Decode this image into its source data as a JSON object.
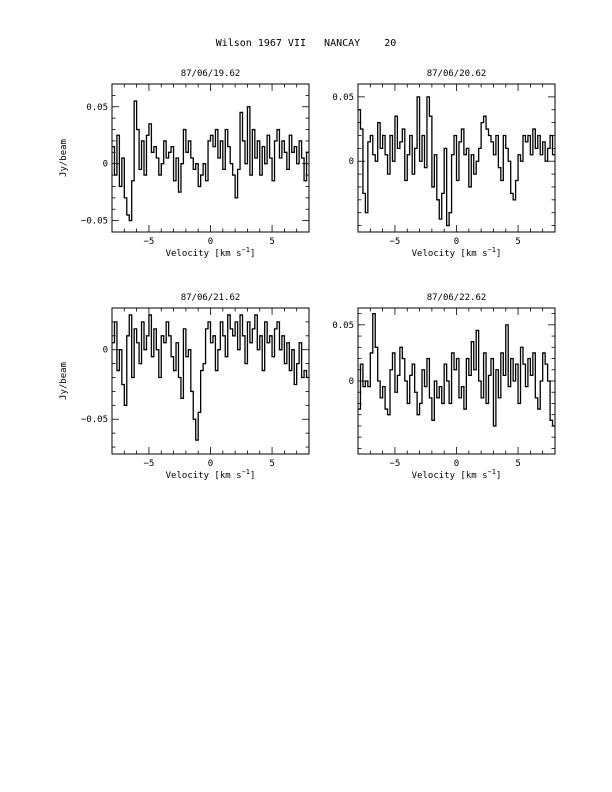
{
  "page": {
    "title": "Wilson 1967 VII   NANCAY    20"
  },
  "chart_data": [
    {
      "type": "line",
      "title": "87/06/19.62",
      "xlabel": "Velocity [km s^-1]",
      "ylabel": "Jy/beam",
      "xlim": [
        -8,
        8
      ],
      "ylim": [
        -0.06,
        0.07
      ],
      "xticks": [
        -5,
        0,
        5
      ],
      "yticks": [
        -0.05,
        0,
        0.05
      ],
      "ytick_labels": [
        "-0.05",
        "0",
        "0.05"
      ],
      "x": [
        -7.9,
        -7.7,
        -7.5,
        -7.3,
        -7.1,
        -6.9,
        -6.7,
        -6.5,
        -6.3,
        -6.1,
        -5.9,
        -5.7,
        -5.5,
        -5.3,
        -5.1,
        -4.9,
        -4.7,
        -4.5,
        -4.3,
        -4.1,
        -3.9,
        -3.7,
        -3.5,
        -3.3,
        -3.1,
        -2.9,
        -2.7,
        -2.5,
        -2.3,
        -2.1,
        -1.9,
        -1.7,
        -1.5,
        -1.3,
        -1.1,
        -0.9,
        -0.7,
        -0.5,
        -0.3,
        -0.1,
        0.1,
        0.3,
        0.5,
        0.7,
        0.9,
        1.1,
        1.3,
        1.5,
        1.7,
        1.9,
        2.1,
        2.3,
        2.5,
        2.7,
        2.9,
        3.1,
        3.3,
        3.5,
        3.7,
        3.9,
        4.1,
        4.3,
        4.5,
        4.7,
        4.9,
        5.1,
        5.3,
        5.5,
        5.7,
        5.9,
        6.1,
        6.3,
        6.5,
        6.7,
        6.9,
        7.1,
        7.3,
        7.5,
        7.7,
        7.9
      ],
      "y": [
        0.015,
        -0.01,
        0.025,
        -0.02,
        0.005,
        -0.03,
        -0.045,
        -0.05,
        -0.015,
        0.055,
        0.03,
        -0.005,
        0.02,
        -0.01,
        0.025,
        0.035,
        0.01,
        0.015,
        0.005,
        -0.01,
        0.0,
        0.02,
        0.005,
        0.01,
        0.015,
        -0.015,
        0.005,
        -0.025,
        0.0,
        0.03,
        0.01,
        0.02,
        0.005,
        -0.005,
        0.0,
        -0.02,
        -0.01,
        0.0,
        -0.015,
        0.02,
        0.025,
        0.015,
        0.03,
        0.005,
        0.02,
        -0.005,
        0.03,
        0.015,
        0.0,
        -0.01,
        -0.03,
        -0.005,
        0.045,
        0.02,
        0.0,
        0.05,
        -0.01,
        0.03,
        0.005,
        0.02,
        -0.01,
        0.015,
        0.0,
        0.025,
        0.005,
        -0.015,
        0.02,
        0.03,
        0.005,
        0.02,
        0.01,
        -0.005,
        0.025,
        0.01,
        0.015,
        0.0,
        0.02,
        0.005,
        -0.015,
        0.01
      ]
    },
    {
      "type": "line",
      "title": "87/06/20.62",
      "xlabel": "Velocity [km s^-1]",
      "ylabel": "",
      "xlim": [
        -8,
        8
      ],
      "ylim": [
        -0.055,
        0.06
      ],
      "xticks": [
        -5,
        0,
        5
      ],
      "yticks": [
        0,
        0.05
      ],
      "ytick_labels": [
        "0",
        "0.05"
      ],
      "x": [
        -7.9,
        -7.7,
        -7.5,
        -7.3,
        -7.1,
        -6.9,
        -6.7,
        -6.5,
        -6.3,
        -6.1,
        -5.9,
        -5.7,
        -5.5,
        -5.3,
        -5.1,
        -4.9,
        -4.7,
        -4.5,
        -4.3,
        -4.1,
        -3.9,
        -3.7,
        -3.5,
        -3.3,
        -3.1,
        -2.9,
        -2.7,
        -2.5,
        -2.3,
        -2.1,
        -1.9,
        -1.7,
        -1.5,
        -1.3,
        -1.1,
        -0.9,
        -0.7,
        -0.5,
        -0.3,
        -0.1,
        0.1,
        0.3,
        0.5,
        0.7,
        0.9,
        1.1,
        1.3,
        1.5,
        1.7,
        1.9,
        2.1,
        2.3,
        2.5,
        2.7,
        2.9,
        3.1,
        3.3,
        3.5,
        3.7,
        3.9,
        4.1,
        4.3,
        4.5,
        4.7,
        4.9,
        5.1,
        5.3,
        5.5,
        5.7,
        5.9,
        6.1,
        6.3,
        6.5,
        6.7,
        6.9,
        7.1,
        7.3,
        7.5,
        7.7,
        7.9
      ],
      "y": [
        0.04,
        0.025,
        -0.025,
        -0.04,
        0.015,
        0.02,
        0.005,
        0.0,
        0.03,
        0.01,
        0.02,
        0.005,
        -0.01,
        0.02,
        0.0,
        0.035,
        0.01,
        0.015,
        0.025,
        -0.015,
        0.005,
        0.02,
        -0.01,
        0.01,
        0.05,
        0.0,
        0.02,
        -0.005,
        0.05,
        0.035,
        -0.02,
        0.005,
        -0.03,
        -0.045,
        -0.025,
        0.01,
        -0.05,
        -0.04,
        0.005,
        0.02,
        -0.015,
        0.015,
        0.025,
        0.005,
        0.01,
        -0.02,
        0.005,
        -0.01,
        0.0,
        0.01,
        0.03,
        0.035,
        0.025,
        0.02,
        0.015,
        0.005,
        0.02,
        -0.005,
        -0.015,
        0.02,
        0.01,
        0.0,
        -0.025,
        -0.03,
        -0.015,
        0.005,
        0.0,
        0.02,
        0.015,
        0.02,
        0.005,
        0.025,
        0.01,
        0.02,
        0.005,
        0.015,
        0.0,
        0.01,
        0.02,
        0.005
      ]
    },
    {
      "type": "line",
      "title": "87/06/21.62",
      "xlabel": "Velocity [km s^-1]",
      "ylabel": "Jy/beam",
      "xlim": [
        -8,
        8
      ],
      "ylim": [
        -0.075,
        0.03
      ],
      "xticks": [
        -5,
        0,
        5
      ],
      "yticks": [
        -0.05,
        0
      ],
      "ytick_labels": [
        "-0.05",
        "0"
      ],
      "x": [
        -7.9,
        -7.7,
        -7.5,
        -7.3,
        -7.1,
        -6.9,
        -6.7,
        -6.5,
        -6.3,
        -6.1,
        -5.9,
        -5.7,
        -5.5,
        -5.3,
        -5.1,
        -4.9,
        -4.7,
        -4.5,
        -4.3,
        -4.1,
        -3.9,
        -3.7,
        -3.5,
        -3.3,
        -3.1,
        -2.9,
        -2.7,
        -2.5,
        -2.3,
        -2.1,
        -1.9,
        -1.7,
        -1.5,
        -1.3,
        -1.1,
        -0.9,
        -0.7,
        -0.5,
        -0.3,
        -0.1,
        0.1,
        0.3,
        0.5,
        0.7,
        0.9,
        1.1,
        1.3,
        1.5,
        1.7,
        1.9,
        2.1,
        2.3,
        2.5,
        2.7,
        2.9,
        3.1,
        3.3,
        3.5,
        3.7,
        3.9,
        4.1,
        4.3,
        4.5,
        4.7,
        4.9,
        5.1,
        5.3,
        5.5,
        5.7,
        5.9,
        6.1,
        6.3,
        6.5,
        6.7,
        6.9,
        7.1,
        7.3,
        7.5,
        7.7,
        7.9
      ],
      "y": [
        0.005,
        0.02,
        -0.015,
        0.0,
        -0.025,
        -0.04,
        0.01,
        0.025,
        -0.02,
        0.015,
        0.005,
        -0.01,
        0.02,
        0.0,
        0.01,
        0.025,
        -0.005,
        0.015,
        0.0,
        -0.02,
        0.01,
        0.005,
        0.02,
        0.01,
        -0.005,
        -0.015,
        0.005,
        -0.02,
        -0.035,
        0.015,
        -0.005,
        0.0,
        -0.03,
        -0.05,
        -0.065,
        -0.045,
        -0.015,
        -0.01,
        0.015,
        0.02,
        0.005,
        0.01,
        -0.015,
        0.0,
        0.02,
        0.01,
        -0.005,
        0.025,
        0.015,
        0.01,
        0.02,
        0.0,
        0.025,
        0.01,
        -0.01,
        0.02,
        0.005,
        0.015,
        0.025,
        0.0,
        0.01,
        -0.015,
        0.02,
        0.005,
        0.01,
        -0.005,
        0.015,
        0.02,
        0.0,
        0.01,
        -0.01,
        0.005,
        -0.015,
        0.0,
        -0.025,
        -0.01,
        0.005,
        -0.02,
        -0.015,
        -0.02
      ]
    },
    {
      "type": "line",
      "title": "87/06/22.62",
      "xlabel": "Velocity [km s^-1]",
      "ylabel": "",
      "xlim": [
        -8,
        8
      ],
      "ylim": [
        -0.065,
        0.065
      ],
      "xticks": [
        -5,
        0,
        5
      ],
      "yticks": [
        0,
        0.05
      ],
      "ytick_labels": [
        "0",
        "0.05"
      ],
      "x": [
        -7.9,
        -7.7,
        -7.5,
        -7.3,
        -7.1,
        -6.9,
        -6.7,
        -6.5,
        -6.3,
        -6.1,
        -5.9,
        -5.7,
        -5.5,
        -5.3,
        -5.1,
        -4.9,
        -4.7,
        -4.5,
        -4.3,
        -4.1,
        -3.9,
        -3.7,
        -3.5,
        -3.3,
        -3.1,
        -2.9,
        -2.7,
        -2.5,
        -2.3,
        -2.1,
        -1.9,
        -1.7,
        -1.5,
        -1.3,
        -1.1,
        -0.9,
        -0.7,
        -0.5,
        -0.3,
        -0.1,
        0.1,
        0.3,
        0.5,
        0.7,
        0.9,
        1.1,
        1.3,
        1.5,
        1.7,
        1.9,
        2.1,
        2.3,
        2.5,
        2.7,
        2.9,
        3.1,
        3.3,
        3.5,
        3.7,
        3.9,
        4.1,
        4.3,
        4.5,
        4.7,
        4.9,
        5.1,
        5.3,
        5.5,
        5.7,
        5.9,
        6.1,
        6.3,
        6.5,
        6.7,
        6.9,
        7.1,
        7.3,
        7.5,
        7.7,
        7.9
      ],
      "y": [
        -0.025,
        0.015,
        -0.005,
        0.0,
        -0.005,
        0.025,
        0.06,
        0.03,
        0.0,
        -0.015,
        -0.005,
        -0.025,
        -0.03,
        0.01,
        0.025,
        -0.01,
        0.005,
        0.03,
        0.02,
        0.0,
        -0.02,
        0.005,
        0.015,
        -0.01,
        -0.03,
        -0.02,
        0.01,
        -0.005,
        0.02,
        -0.015,
        -0.035,
        0.0,
        -0.015,
        -0.005,
        -0.02,
        0.015,
        0.0,
        -0.02,
        0.025,
        0.01,
        0.02,
        -0.015,
        -0.005,
        -0.025,
        0.02,
        0.005,
        0.035,
        0.01,
        0.045,
        0.0,
        -0.015,
        0.025,
        -0.02,
        0.005,
        0.02,
        -0.04,
        0.01,
        -0.015,
        0.025,
        0.005,
        0.05,
        -0.005,
        0.02,
        0.0,
        0.015,
        -0.02,
        0.03,
        0.015,
        -0.005,
        0.02,
        0.005,
        0.025,
        -0.015,
        -0.025,
        0.0,
        0.025,
        0.015,
        0.0,
        -0.035,
        -0.04
      ]
    }
  ]
}
